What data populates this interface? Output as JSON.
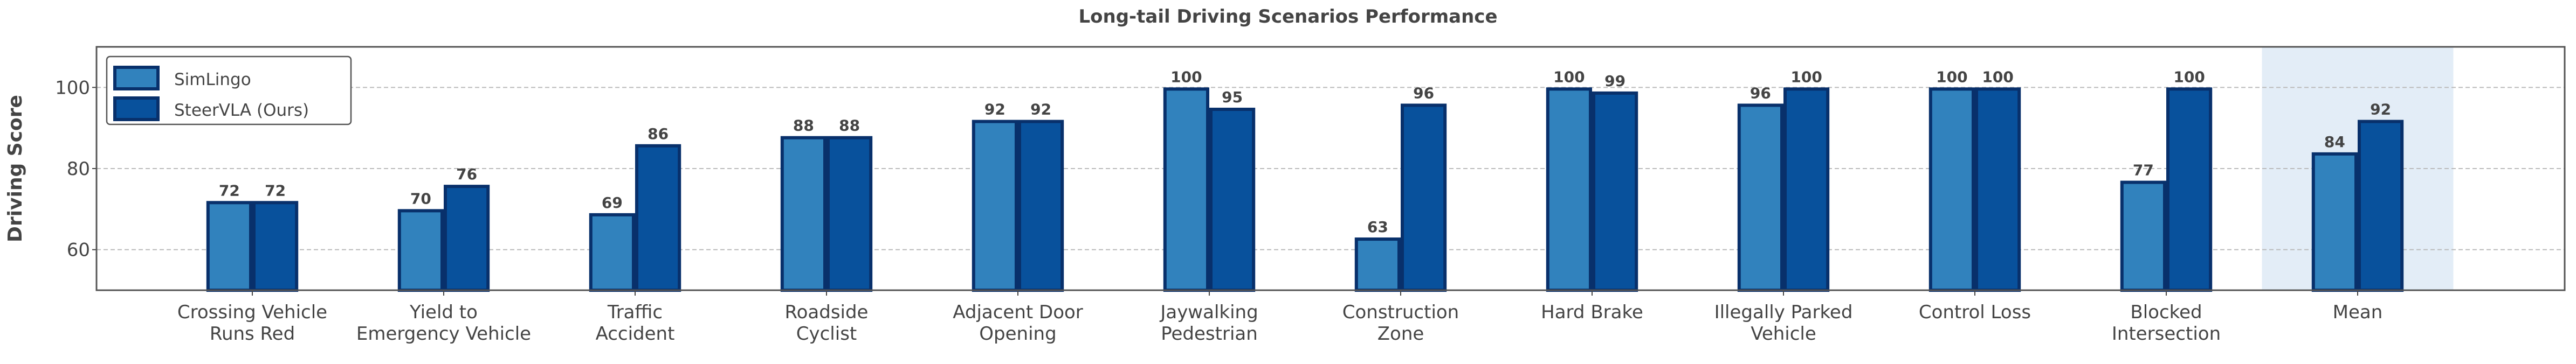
{
  "chart_data": {
    "type": "bar",
    "title": "Long-tail Driving Scenarios Performance",
    "xlabel": "",
    "ylabel": "Driving Score",
    "ylim": [
      50,
      110
    ],
    "yticks": [
      60,
      80,
      100
    ],
    "grid": "y dashed",
    "legend_placement": "top-left",
    "categories": [
      [
        "Crossing Vehicle",
        "Runs Red"
      ],
      [
        "Yield to",
        "Emergency Vehicle"
      ],
      [
        "Traffic",
        "Accident"
      ],
      [
        "Roadside",
        "Cyclist"
      ],
      [
        "Adjacent Door",
        "Opening"
      ],
      [
        "Jaywalking",
        "Pedestrian"
      ],
      [
        "Construction",
        "Zone"
      ],
      [
        "Hard Brake"
      ],
      [
        "Illegally Parked",
        "Vehicle"
      ],
      [
        "Control Loss"
      ],
      [
        "Blocked",
        "Intersection"
      ],
      [
        "Mean"
      ]
    ],
    "highlighted_category": "Mean",
    "series": [
      {
        "name": "SimLingo",
        "color": "#3182bd",
        "values": [
          72,
          70,
          69,
          88,
          92,
          100,
          63,
          100,
          96,
          100,
          77,
          84
        ]
      },
      {
        "name": "SteerVLA (Ours)",
        "color": "#08519c",
        "values": [
          72,
          76,
          86,
          88,
          92,
          95,
          96,
          99,
          100,
          100,
          100,
          92
        ]
      }
    ],
    "edge_color": "#08306b",
    "highlight_color": "#e3edf7"
  }
}
